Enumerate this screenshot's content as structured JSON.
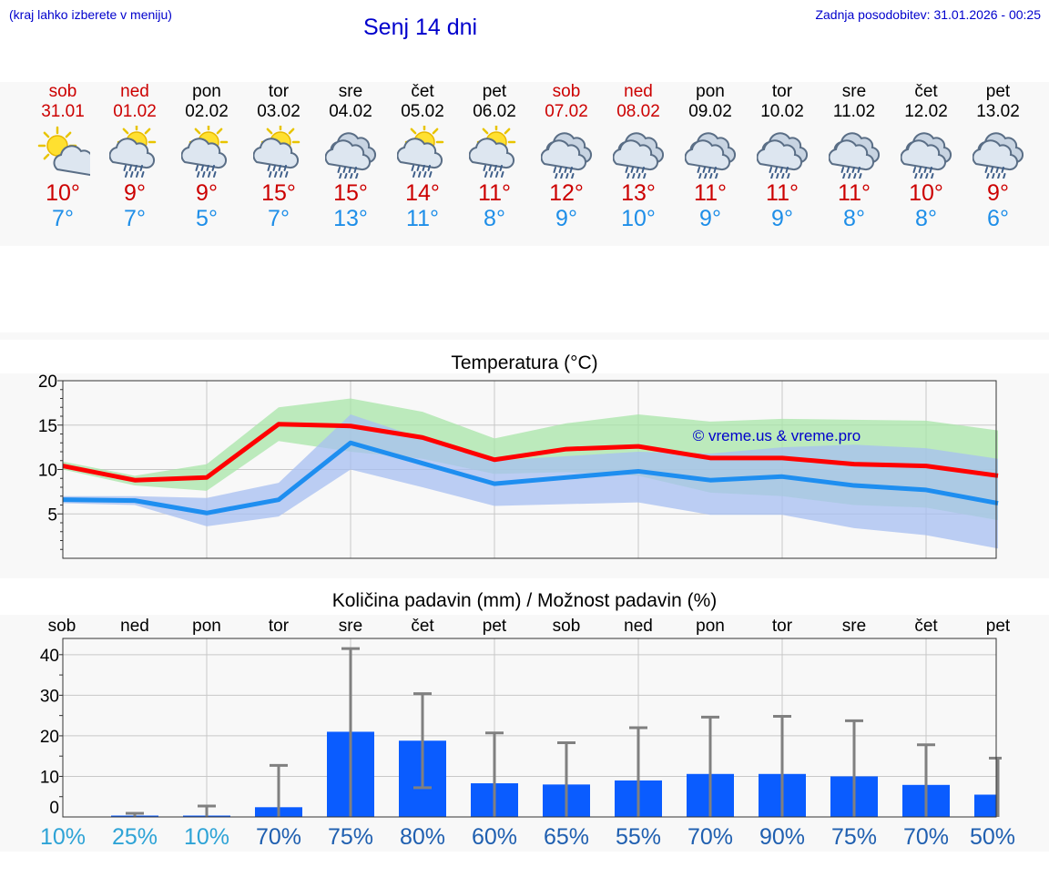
{
  "header": {
    "hint": "(kraj lahko izberete v meniju)",
    "title": "Senj 14 dni",
    "updated": "Zadnja posodobitev: 31.01.2026 - 00:25"
  },
  "days": [
    {
      "name": "sob",
      "date": "31.01",
      "weekend": true,
      "icon": "sun-cloud-icon",
      "tmax": "10°",
      "tmin": "7°"
    },
    {
      "name": "ned",
      "date": "01.02",
      "weekend": true,
      "icon": "sun-cloud-rain-icon",
      "tmax": "9°",
      "tmin": "7°"
    },
    {
      "name": "pon",
      "date": "02.02",
      "weekend": false,
      "icon": "sun-cloud-rain-icon",
      "tmax": "9°",
      "tmin": "5°"
    },
    {
      "name": "tor",
      "date": "03.02",
      "weekend": false,
      "icon": "sun-cloud-rain-icon",
      "tmax": "15°",
      "tmin": "7°"
    },
    {
      "name": "sre",
      "date": "04.02",
      "weekend": false,
      "icon": "cloud-rain-icon",
      "tmax": "15°",
      "tmin": "13°"
    },
    {
      "name": "čet",
      "date": "05.02",
      "weekend": false,
      "icon": "sun-cloud-rain-icon",
      "tmax": "14°",
      "tmin": "11°"
    },
    {
      "name": "pet",
      "date": "06.02",
      "weekend": false,
      "icon": "sun-cloud-rain-icon",
      "tmax": "11°",
      "tmin": "8°"
    },
    {
      "name": "sob",
      "date": "07.02",
      "weekend": true,
      "icon": "cloud-rain-icon",
      "tmax": "12°",
      "tmin": "9°"
    },
    {
      "name": "ned",
      "date": "08.02",
      "weekend": true,
      "icon": "cloud-rain-icon",
      "tmax": "13°",
      "tmin": "10°"
    },
    {
      "name": "pon",
      "date": "09.02",
      "weekend": false,
      "icon": "cloud-rain-icon",
      "tmax": "11°",
      "tmin": "9°"
    },
    {
      "name": "tor",
      "date": "10.02",
      "weekend": false,
      "icon": "cloud-rain-icon",
      "tmax": "11°",
      "tmin": "9°"
    },
    {
      "name": "sre",
      "date": "11.02",
      "weekend": false,
      "icon": "cloud-rain-icon",
      "tmax": "11°",
      "tmin": "8°"
    },
    {
      "name": "čet",
      "date": "12.02",
      "weekend": false,
      "icon": "cloud-rain-icon",
      "tmax": "10°",
      "tmin": "8°"
    },
    {
      "name": "pet",
      "date": "13.02",
      "weekend": false,
      "icon": "cloud-rain-icon",
      "tmax": "9°",
      "tmin": "6°"
    }
  ],
  "colors": {
    "weekend": "#cc0000",
    "tmax": "#cc0000",
    "tmin": "#1e8ee8",
    "max_band": "#a8e6a8",
    "min_band": "#a7bff2",
    "overlap": "#7fc4a8",
    "bar": "#0a5cff",
    "error": "#808080",
    "pct_low": "#2ea3d6",
    "pct_high": "#1f5fb0"
  },
  "chart_data": [
    {
      "type": "line",
      "title": "Temperatura (°C)",
      "watermark": "© vreme.us & vreme.pro",
      "ylim": [
        0,
        20
      ],
      "yticks": [
        5,
        10,
        15,
        20
      ],
      "x": [
        0,
        1,
        2,
        3,
        4,
        5,
        6,
        7,
        8,
        9,
        10,
        11,
        12,
        13
      ],
      "series": [
        {
          "name": "max",
          "color": "#ff0000",
          "values": [
            10.4,
            8.8,
            9.1,
            15.1,
            14.9,
            13.6,
            11.1,
            12.3,
            12.6,
            11.3,
            11.3,
            10.6,
            10.4,
            9.3
          ],
          "band_low": [
            10.0,
            8.2,
            7.6,
            13.2,
            12.0,
            11.2,
            9.5,
            9.7,
            9.3,
            7.4,
            7.0,
            6.0,
            5.7,
            4.3
          ],
          "band_high": [
            10.9,
            9.3,
            10.6,
            17.0,
            18.0,
            16.5,
            13.5,
            15.2,
            16.2,
            15.4,
            15.7,
            15.6,
            15.5,
            14.4
          ]
        },
        {
          "name": "min",
          "color": "#1e8ef0",
          "values": [
            6.6,
            6.5,
            5.1,
            6.6,
            13.0,
            10.7,
            8.4,
            9.1,
            9.8,
            8.8,
            9.2,
            8.2,
            7.7,
            6.2
          ],
          "band_low": [
            6.2,
            6.0,
            3.6,
            4.7,
            10.0,
            8.0,
            5.9,
            6.1,
            6.3,
            4.9,
            4.9,
            3.4,
            2.6,
            1.1
          ],
          "band_high": [
            7.0,
            7.0,
            6.8,
            8.5,
            16.2,
            13.5,
            11.0,
            11.5,
            12.0,
            11.8,
            12.5,
            12.8,
            12.4,
            11.2
          ]
        }
      ]
    },
    {
      "type": "bar",
      "title": "Količina padavin (mm) / Možnost padavin (%)",
      "categories": [
        "sob",
        "ned",
        "pon",
        "tor",
        "sre",
        "čet",
        "pet",
        "sob",
        "ned",
        "pon",
        "tor",
        "sre",
        "čet",
        "pet"
      ],
      "values": [
        0.0,
        0.3,
        0.1,
        2.4,
        21.0,
        18.8,
        8.3,
        8.0,
        9.0,
        10.6,
        10.6,
        10.0,
        7.9,
        5.5
      ],
      "error_low": [
        0.0,
        0.0,
        0.0,
        0.0,
        0.0,
        7.2,
        0.0,
        0.0,
        0.0,
        0.0,
        0.0,
        0.0,
        0.0,
        0.0
      ],
      "error_high": [
        0.0,
        0.9,
        2.7,
        12.7,
        41.5,
        30.4,
        20.7,
        18.3,
        22.0,
        24.6,
        24.8,
        23.7,
        17.8,
        14.5
      ],
      "probability": [
        "10%",
        "25%",
        "10%",
        "70%",
        "75%",
        "80%",
        "60%",
        "65%",
        "55%",
        "70%",
        "90%",
        "75%",
        "70%",
        "50%"
      ],
      "yticks": [
        0,
        10,
        20,
        30,
        40
      ],
      "ytick_labels": [
        "0",
        "10",
        "20",
        "30",
        "40"
      ],
      "ylim": [
        0,
        44
      ]
    }
  ]
}
